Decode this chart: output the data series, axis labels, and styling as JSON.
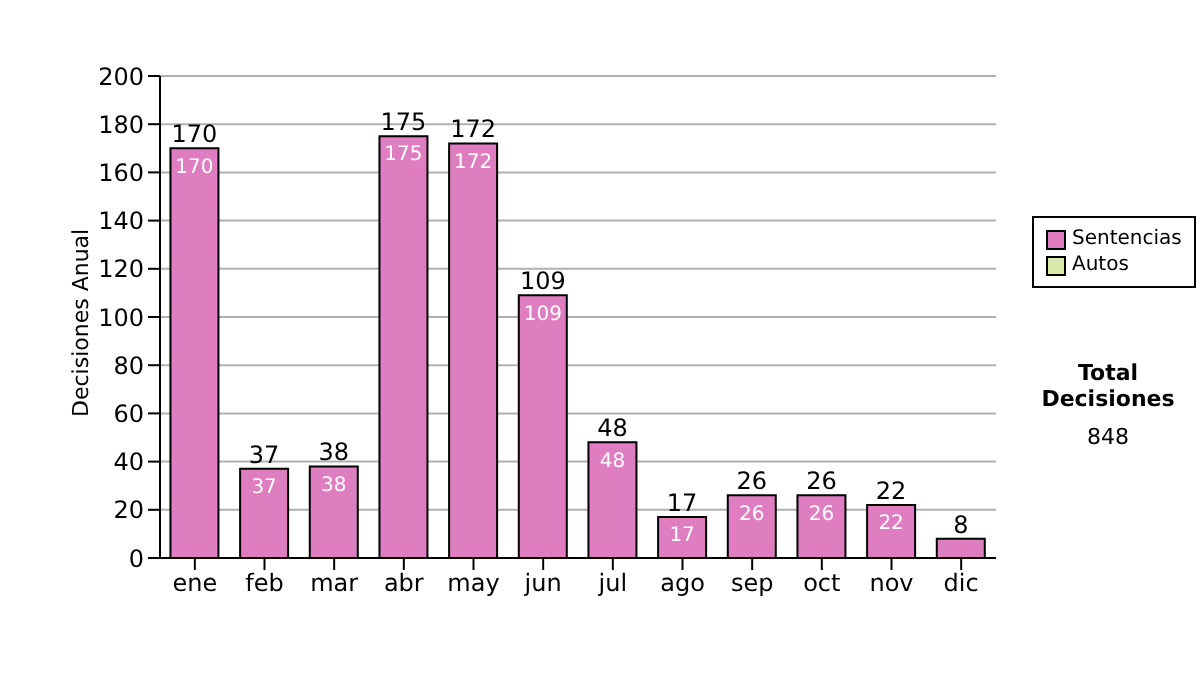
{
  "chart_data": {
    "type": "bar",
    "ylabel": "Decisiones Anual",
    "categories": [
      "ene",
      "feb",
      "mar",
      "abr",
      "may",
      "jun",
      "jul",
      "ago",
      "sep",
      "oct",
      "nov",
      "dic"
    ],
    "series": [
      {
        "name": "Sentencias",
        "color": "#de7dc0",
        "values": [
          170,
          37,
          38,
          175,
          172,
          109,
          48,
          17,
          26,
          26,
          22,
          8
        ],
        "value_labels": [
          "170",
          "37",
          "38",
          "175",
          "172",
          "109",
          "48",
          "17",
          "26",
          "26",
          "22",
          null
        ]
      },
      {
        "name": "Autos",
        "color": "#d8eaa8",
        "values": [
          0,
          0,
          0,
          0,
          0,
          0,
          0,
          0,
          0,
          0,
          0,
          0
        ]
      }
    ],
    "stacked": true,
    "totals": [
      "170",
      "37",
      "38",
      "175",
      "172",
      "109",
      "48",
      "17",
      "26",
      "26",
      "22",
      "8"
    ],
    "ylim": [
      0,
      200
    ],
    "yticks": [
      0,
      20,
      40,
      60,
      80,
      100,
      120,
      140,
      160,
      180,
      200
    ],
    "grid": "y",
    "legend": "right",
    "annotations": [
      "Total Decisiones",
      "848"
    ]
  }
}
